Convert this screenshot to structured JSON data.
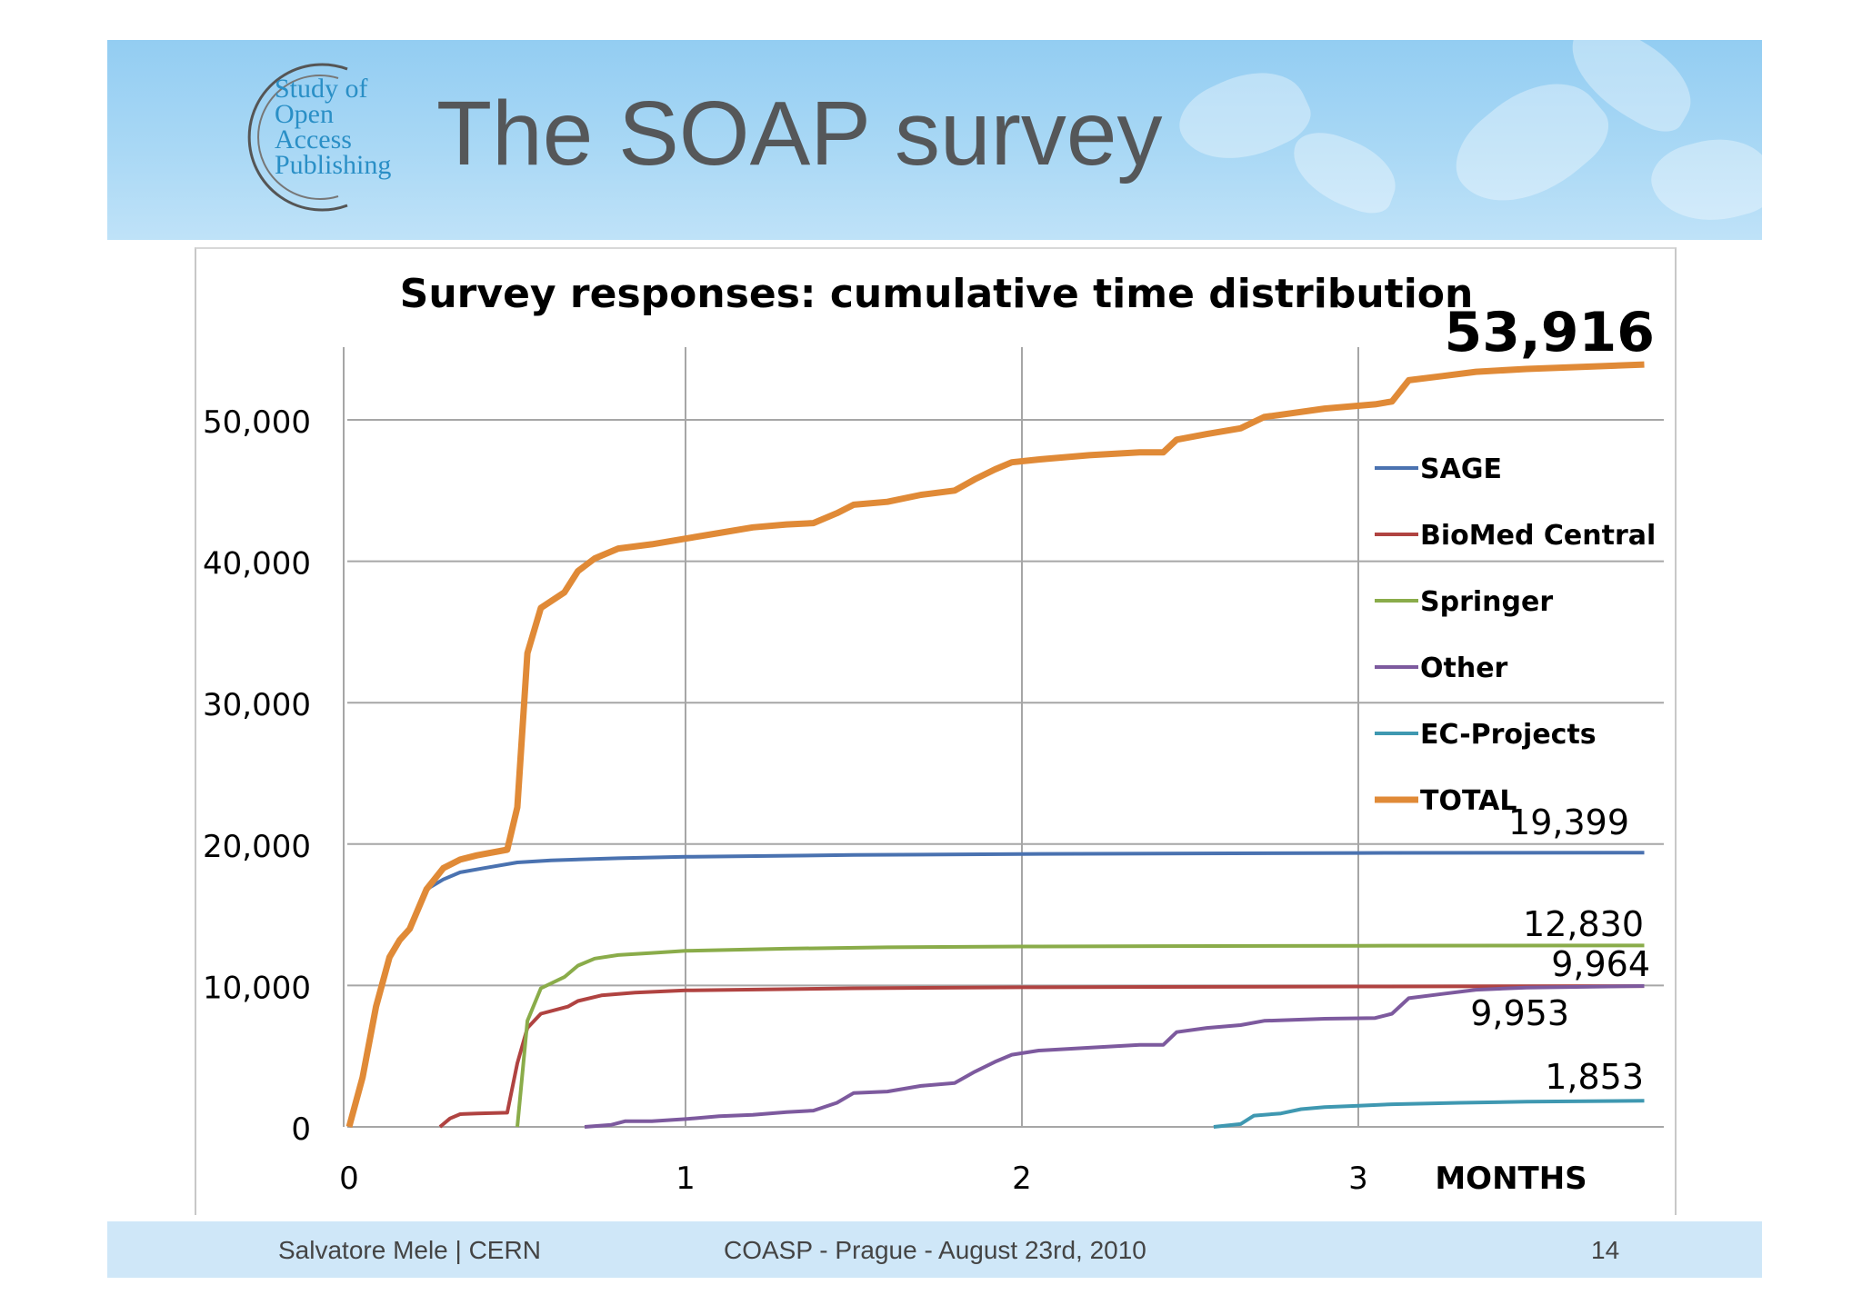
{
  "slide": {
    "title": "The SOAP survey",
    "logo_lines": [
      "Study of",
      "Open",
      "Access",
      "Publishing"
    ]
  },
  "footer": {
    "author": "Salvatore Mele | CERN",
    "event": "COASP - Prague - August 23rd, 2010",
    "page": "14"
  },
  "chart_data": {
    "type": "line",
    "title": "Survey responses: cumulative time distribution",
    "xlabel": "MONTHS",
    "ylabel": "",
    "xlim": [
      0,
      3.85
    ],
    "ylim": [
      0,
      55000
    ],
    "x_ticks": [
      0,
      1,
      2,
      3
    ],
    "x_tick_labels": [
      "0",
      "1",
      "2",
      "3"
    ],
    "y_ticks": [
      0,
      10000,
      20000,
      30000,
      40000,
      50000
    ],
    "y_tick_labels": [
      "0",
      "10,000",
      "20,000",
      "30,000",
      "40,000",
      "50,000"
    ],
    "grid": true,
    "legend_position": "right",
    "series": [
      {
        "name": "SAGE",
        "color": "#4a72b0",
        "points": [
          [
            0,
            0
          ],
          [
            0.04,
            3500
          ],
          [
            0.08,
            8500
          ],
          [
            0.12,
            12000
          ],
          [
            0.15,
            13200
          ],
          [
            0.18,
            14000
          ],
          [
            0.23,
            16800
          ],
          [
            0.28,
            17500
          ],
          [
            0.33,
            18000
          ],
          [
            0.4,
            18300
          ],
          [
            0.5,
            18700
          ],
          [
            0.6,
            18850
          ],
          [
            0.8,
            19000
          ],
          [
            1.0,
            19100
          ],
          [
            1.5,
            19230
          ],
          [
            2.0,
            19300
          ],
          [
            3.0,
            19370
          ],
          [
            3.85,
            19399
          ]
        ],
        "end_label": "19,399"
      },
      {
        "name": "BioMed Central",
        "color": "#b04341",
        "points": [
          [
            0.27,
            0
          ],
          [
            0.3,
            600
          ],
          [
            0.33,
            900
          ],
          [
            0.38,
            950
          ],
          [
            0.47,
            1000
          ],
          [
            0.5,
            4500
          ],
          [
            0.53,
            7000
          ],
          [
            0.57,
            8000
          ],
          [
            0.65,
            8500
          ],
          [
            0.68,
            8900
          ],
          [
            0.75,
            9300
          ],
          [
            0.85,
            9500
          ],
          [
            1.0,
            9650
          ],
          [
            1.5,
            9800
          ],
          [
            2.0,
            9870
          ],
          [
            3.0,
            9930
          ],
          [
            3.85,
            9953
          ]
        ],
        "end_label": "9,953"
      },
      {
        "name": "Springer",
        "color": "#8aac4a",
        "points": [
          [
            0.5,
            0
          ],
          [
            0.53,
            7500
          ],
          [
            0.57,
            9800
          ],
          [
            0.64,
            10600
          ],
          [
            0.68,
            11400
          ],
          [
            0.73,
            11900
          ],
          [
            0.8,
            12150
          ],
          [
            0.9,
            12300
          ],
          [
            1.0,
            12450
          ],
          [
            1.3,
            12600
          ],
          [
            1.6,
            12700
          ],
          [
            2.0,
            12760
          ],
          [
            3.0,
            12810
          ],
          [
            3.85,
            12830
          ]
        ],
        "end_label": "12,830"
      },
      {
        "name": "Other",
        "color": "#7d5a9e",
        "points": [
          [
            0.7,
            0
          ],
          [
            0.78,
            150
          ],
          [
            0.82,
            400
          ],
          [
            0.9,
            400
          ],
          [
            1.0,
            550
          ],
          [
            1.1,
            750
          ],
          [
            1.2,
            850
          ],
          [
            1.3,
            1050
          ],
          [
            1.38,
            1150
          ],
          [
            1.45,
            1700
          ],
          [
            1.5,
            2400
          ],
          [
            1.6,
            2500
          ],
          [
            1.7,
            2900
          ],
          [
            1.8,
            3100
          ],
          [
            1.86,
            3900
          ],
          [
            1.92,
            4600
          ],
          [
            1.97,
            5100
          ],
          [
            2.05,
            5400
          ],
          [
            2.2,
            5600
          ],
          [
            2.35,
            5800
          ],
          [
            2.42,
            5800
          ],
          [
            2.46,
            6700
          ],
          [
            2.55,
            7000
          ],
          [
            2.65,
            7200
          ],
          [
            2.72,
            7500
          ],
          [
            2.9,
            7650
          ],
          [
            3.05,
            7700
          ],
          [
            3.1,
            8000
          ],
          [
            3.15,
            9100
          ],
          [
            3.25,
            9400
          ],
          [
            3.35,
            9700
          ],
          [
            3.5,
            9850
          ],
          [
            3.85,
            9964
          ]
        ],
        "end_label": "9,964"
      },
      {
        "name": "EC-Projects",
        "color": "#3f98b1",
        "points": [
          [
            2.57,
            0
          ],
          [
            2.65,
            200
          ],
          [
            2.69,
            800
          ],
          [
            2.77,
            950
          ],
          [
            2.83,
            1250
          ],
          [
            2.9,
            1400
          ],
          [
            3.0,
            1500
          ],
          [
            3.1,
            1600
          ],
          [
            3.3,
            1700
          ],
          [
            3.5,
            1780
          ],
          [
            3.85,
            1853
          ]
        ],
        "end_label": "1,853"
      },
      {
        "name": "TOTAL",
        "color": "#e08a37",
        "points": [
          [
            0,
            0
          ],
          [
            0.04,
            3500
          ],
          [
            0.08,
            8500
          ],
          [
            0.12,
            12000
          ],
          [
            0.15,
            13200
          ],
          [
            0.18,
            14000
          ],
          [
            0.23,
            16800
          ],
          [
            0.28,
            18300
          ],
          [
            0.33,
            18900
          ],
          [
            0.38,
            19200
          ],
          [
            0.47,
            19600
          ],
          [
            0.5,
            22600
          ],
          [
            0.53,
            33500
          ],
          [
            0.57,
            36700
          ],
          [
            0.64,
            37800
          ],
          [
            0.68,
            39300
          ],
          [
            0.73,
            40200
          ],
          [
            0.8,
            40900
          ],
          [
            0.9,
            41200
          ],
          [
            1.0,
            41600
          ],
          [
            1.1,
            42000
          ],
          [
            1.2,
            42400
          ],
          [
            1.3,
            42600
          ],
          [
            1.38,
            42700
          ],
          [
            1.45,
            43400
          ],
          [
            1.5,
            44000
          ],
          [
            1.6,
            44200
          ],
          [
            1.7,
            44700
          ],
          [
            1.8,
            45000
          ],
          [
            1.86,
            45800
          ],
          [
            1.92,
            46500
          ],
          [
            1.97,
            47000
          ],
          [
            2.05,
            47200
          ],
          [
            2.2,
            47500
          ],
          [
            2.35,
            47700
          ],
          [
            2.42,
            47700
          ],
          [
            2.46,
            48600
          ],
          [
            2.55,
            49000
          ],
          [
            2.65,
            49400
          ],
          [
            2.72,
            50200
          ],
          [
            2.9,
            50800
          ],
          [
            3.05,
            51100
          ],
          [
            3.1,
            51300
          ],
          [
            3.15,
            52800
          ],
          [
            3.25,
            53100
          ],
          [
            3.35,
            53400
          ],
          [
            3.5,
            53600
          ],
          [
            3.85,
            53916
          ]
        ],
        "end_label": "53,916"
      }
    ]
  }
}
